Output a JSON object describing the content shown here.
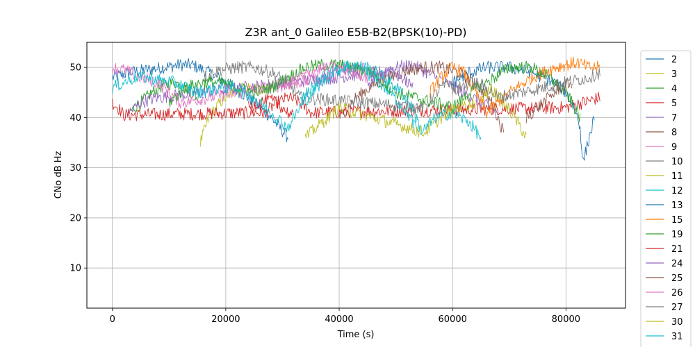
{
  "chart_data": {
    "type": "line",
    "title": "Z3R ant_0 Galileo E5B-B2(BPSK(10)-PD)",
    "xlabel": "Time (s)",
    "ylabel": "CNo dB Hz",
    "xlim": [
      -4500,
      90500
    ],
    "ylim": [
      2,
      55
    ],
    "xticks": [
      0,
      20000,
      40000,
      60000,
      80000
    ],
    "xtick_labels": [
      "0",
      "20000",
      "40000",
      "60000",
      "80000"
    ],
    "yticks": [
      10,
      20,
      30,
      40,
      50
    ],
    "ytick_labels": [
      "10",
      "20",
      "30",
      "40",
      "50"
    ],
    "grid": true,
    "legend_position": "outside-right",
    "series": [
      {
        "name": "2",
        "color": "#1f77b4",
        "x": [
          0,
          3000,
          6000,
          9000,
          12000,
          14000,
          17000,
          20000,
          24000,
          28000,
          31000
        ],
        "y": [
          48,
          49,
          49.5,
          50,
          50.5,
          50.5,
          49,
          47,
          44,
          40,
          36
        ]
      },
      {
        "name": "3",
        "color": "#bcbd22",
        "x": [
          15500,
          17000,
          19000,
          21000,
          23000,
          25000,
          27000
        ],
        "y": [
          35,
          40,
          43,
          45,
          46,
          46,
          45
        ]
      },
      {
        "name": "4",
        "color": "#2ca02c",
        "x": [
          3000,
          5000,
          7000,
          9000,
          11000,
          13000,
          15000
        ],
        "y": [
          41,
          43,
          45,
          46.5,
          47,
          46,
          44
        ]
      },
      {
        "name": "5",
        "color": "#d62728",
        "x": [
          0,
          1000,
          2000,
          27000,
          29000,
          31000,
          33000,
          35000,
          80000,
          83000,
          86000
        ],
        "y": [
          43,
          42,
          40.5,
          41,
          43,
          44,
          43,
          41,
          42,
          43,
          44
        ]
      },
      {
        "name": "7",
        "color": "#9467bd",
        "x": [
          3000,
          5000,
          8000,
          47000,
          50000,
          53000,
          62000,
          65000,
          68000
        ],
        "y": [
          41,
          43,
          44,
          49,
          50,
          50.5,
          45,
          43,
          41
        ]
      },
      {
        "name": "8",
        "color": "#8c564b",
        "x": [
          40000,
          43000,
          46000,
          49000,
          52000,
          55000,
          58000,
          61000,
          64000,
          67000,
          69000
        ],
        "y": [
          40,
          44,
          46.5,
          48,
          49.5,
          50,
          50,
          49,
          47,
          43,
          37
        ]
      },
      {
        "name": "9",
        "color": "#e377c2",
        "x": [
          0,
          2000,
          5000,
          8000,
          10000,
          12000,
          38000,
          41000,
          44000,
          47000
        ],
        "y": [
          50,
          49.5,
          48,
          47,
          45,
          43,
          48,
          49.5,
          50,
          49
        ]
      },
      {
        "name": "10",
        "color": "#7f7f7f",
        "x": [
          16000,
          19000,
          22000,
          25000,
          28000,
          31000,
          33000,
          55000,
          58000,
          60000
        ],
        "y": [
          48,
          49.5,
          50,
          50,
          49,
          47,
          44,
          42,
          46,
          47
        ]
      },
      {
        "name": "11",
        "color": "#bcbd22",
        "x": [
          65000,
          67000,
          69000,
          71000,
          73000
        ],
        "y": [
          44,
          45.5,
          43,
          40,
          36
        ]
      },
      {
        "name": "12",
        "color": "#17becf",
        "x": [
          33000,
          36000,
          38000,
          41000,
          44000,
          46000,
          49000,
          52000,
          54000
        ],
        "y": [
          43,
          47,
          49,
          50,
          49.5,
          48,
          45,
          41,
          37
        ]
      },
      {
        "name": "13",
        "color": "#1f77b4",
        "x": [
          60000,
          63000,
          66000,
          70000,
          74000,
          78000,
          80000,
          81500,
          82500,
          83000,
          85000
        ],
        "y": [
          47,
          49,
          50,
          50,
          49,
          47,
          45,
          42,
          38,
          31,
          40
        ]
      },
      {
        "name": "15",
        "color": "#ff7f0e",
        "x": [
          56000,
          58000,
          60000,
          62000,
          64000,
          66000,
          70000,
          74000,
          78000,
          82000,
          84000,
          86000
        ],
        "y": [
          45,
          48,
          50,
          49,
          45,
          41,
          45,
          48,
          50,
          51,
          50,
          50
        ]
      },
      {
        "name": "19",
        "color": "#2ca02c",
        "x": [
          10000,
          13000,
          16000,
          19000,
          22000,
          25000,
          28000,
          31000,
          34000,
          37000,
          40000,
          46000,
          50000,
          60000,
          63000,
          66000,
          70000,
          74000,
          77000,
          80000,
          82500
        ],
        "y": [
          43,
          46,
          47,
          47,
          46,
          45,
          46,
          48,
          50,
          50.5,
          50.5,
          49,
          45,
          42,
          45,
          47,
          50,
          50,
          48,
          45,
          40
        ]
      },
      {
        "name": "21",
        "color": "#d62728",
        "x": [
          24000,
          26000,
          28000,
          30000,
          32000
        ],
        "y": [
          42,
          43,
          43.5,
          42,
          40
        ]
      },
      {
        "name": "24",
        "color": "#9467bd",
        "x": [
          45000,
          47000,
          49000,
          51000,
          53000
        ],
        "y": [
          47,
          48.5,
          49,
          48,
          46
        ]
      },
      {
        "name": "25",
        "color": "#8c564b",
        "x": [
          73000,
          75000,
          77000,
          79000,
          81000
        ],
        "y": [
          40,
          42,
          44,
          46,
          47
        ]
      },
      {
        "name": "26",
        "color": "#e377c2",
        "x": [
          30000,
          33000,
          36000,
          39000,
          42000,
          45000
        ],
        "y": [
          46,
          48,
          49.5,
          50,
          49.5,
          48
        ]
      },
      {
        "name": "27",
        "color": "#7f7f7f",
        "x": [
          60000,
          62000,
          64000,
          66000,
          68000,
          84000,
          86000
        ],
        "y": [
          45,
          46.5,
          47,
          46,
          44,
          48,
          49
        ]
      },
      {
        "name": "30",
        "color": "#bcbd22",
        "x": [
          34000,
          36000,
          38000,
          40000,
          55000,
          58000,
          61000,
          64000
        ],
        "y": [
          36,
          38,
          40,
          42,
          37,
          40,
          42,
          43
        ]
      },
      {
        "name": "31",
        "color": "#17becf",
        "x": [
          0,
          2000,
          4000,
          6000,
          8000,
          11000,
          15000,
          19000,
          22000,
          25000,
          27000,
          29000,
          31000,
          33000,
          36000,
          39000,
          42000,
          45000,
          48000,
          51000,
          53000,
          54500,
          57000,
          60000,
          63000,
          65000
        ],
        "y": [
          46,
          47,
          48,
          48,
          47.5,
          47,
          45,
          46,
          46,
          44,
          42,
          40,
          38,
          42,
          46,
          49,
          50.5,
          50,
          48,
          45,
          42,
          37,
          40,
          41,
          39,
          36
        ]
      }
    ]
  }
}
